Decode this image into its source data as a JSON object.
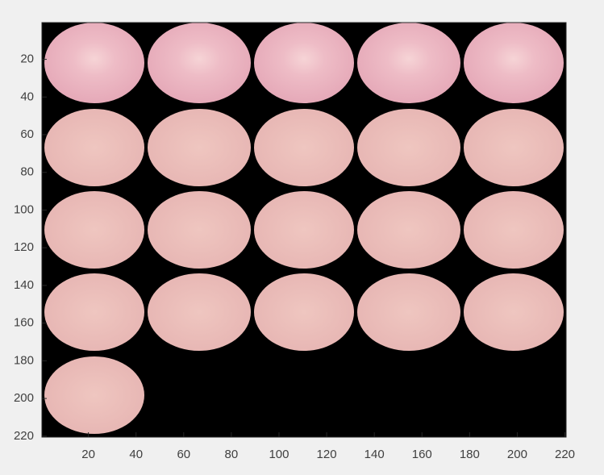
{
  "chart_data": {
    "type": "image",
    "xlim": [
      0.5,
      220.5
    ],
    "ylim": [
      0.5,
      220.5
    ],
    "y_reversed": true,
    "xticks": [
      20,
      40,
      60,
      80,
      100,
      120,
      140,
      160,
      180,
      200,
      220
    ],
    "yticks": [
      20,
      40,
      60,
      80,
      100,
      120,
      140,
      160,
      180,
      200,
      220
    ],
    "background": "#000000"
  }
}
